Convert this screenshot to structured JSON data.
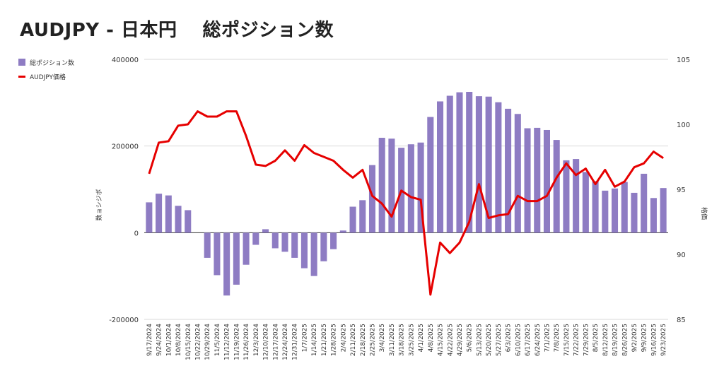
{
  "title": "AUDJPY - 日本円　 総ポジション数",
  "legend": {
    "bar_label": "総ポジション数",
    "line_label": "AUDJPY価格"
  },
  "colors": {
    "bar": "#8e7cc3",
    "line": "#e60000",
    "grid": "#d9d9d9"
  },
  "chart_data": {
    "type": "bar+line",
    "categories": [
      "9/17/2024",
      "9/24/2024",
      "10/1/2024",
      "10/8/2024",
      "10/15/2024",
      "10/22/2024",
      "10/29/2024",
      "11/5/2024",
      "11/12/2024",
      "11/19/2024",
      "11/26/2024",
      "12/3/2024",
      "12/10/2024",
      "12/17/2024",
      "12/24/2024",
      "12/31/2024",
      "1/7/2025",
      "1/14/2025",
      "1/21/2025",
      "1/28/2025",
      "2/4/2025",
      "2/11/2025",
      "2/18/2025",
      "2/25/2025",
      "3/4/2025",
      "3/11/2025",
      "3/18/2025",
      "3/25/2025",
      "4/1/2025",
      "4/8/2025",
      "4/15/2025",
      "4/22/2025",
      "4/29/2025",
      "5/6/2025",
      "5/13/2025",
      "5/20/2025",
      "5/27/2025",
      "6/3/2025",
      "6/10/2025",
      "6/17/2025",
      "6/24/2025",
      "7/1/2025",
      "7/8/2025",
      "7/15/2025",
      "7/22/2025",
      "7/29/2025",
      "8/5/2025",
      "8/12/2025",
      "8/19/2025",
      "8/26/2025",
      "9/2/2025",
      "9/9/2025",
      "9/16/2025",
      "9/23/2025"
    ],
    "x_tick_labels": [
      "9/17/2024",
      "9/24/2024",
      "10/1/2024",
      "10/8/2024",
      "10/15/2024",
      "10/22/2024",
      "10/29/2024",
      "11/5/2024",
      "11/12/2024",
      "11/19/2024",
      "11/26/2024",
      "12/3/2024",
      "12/10/2024",
      "12/17/2024",
      "12/24/2024",
      "12/31/2024",
      "1/7/2025",
      "1/14/2025",
      "1/21/2025",
      "1/28/2025",
      "2/4/2025",
      "2/11/2025",
      "2/18/2025",
      "2/25/2025",
      "3/4/2025",
      "3/11/2025",
      "3/18/2025",
      "3/25/2025",
      "4/1/2025",
      "4/8/2025",
      "4/15/2025",
      "4/22/2025",
      "4/29/2025",
      "5/6/2025",
      "5/13/2025",
      "5/20/2025",
      "5/27/2025",
      "6/3/2025",
      "6/10/2025",
      "6/17/2025",
      "6/24/2025",
      "7/1/2025",
      "7/8/2025",
      "7/15/2025",
      "7/22/2025",
      "7/29/2025",
      "8/5/2025",
      "8/12/2025",
      "8/19/2025",
      "8/26/2025",
      "9/2/2025",
      "9/9/2025",
      "9/16/2025",
      "9/23/2025"
    ],
    "series": [
      {
        "name": "総ポジション数",
        "type": "bar",
        "axis": "left",
        "values": [
          70000,
          90000,
          86000,
          62000,
          52000,
          0,
          -58000,
          -98000,
          -145000,
          -120000,
          -74000,
          -28000,
          8000,
          -36000,
          -44000,
          -58000,
          -82000,
          -100000,
          -66000,
          -38000,
          5000,
          60000,
          75000,
          156000,
          219000,
          217000,
          196000,
          204000,
          208000,
          267000,
          303000,
          316000,
          324000,
          325000,
          315000,
          314000,
          301000,
          286000,
          274000,
          241000,
          242000,
          237000,
          214000,
          167000,
          170000,
          140000,
          119000,
          97000,
          102000,
          117000,
          92000,
          136000,
          80000,
          103000
        ]
      },
      {
        "name": "AUDJPY価格",
        "type": "line",
        "axis": "right",
        "values": [
          96.2,
          98.6,
          98.7,
          99.9,
          100.0,
          101.0,
          100.6,
          100.6,
          101.0,
          101.0,
          99.1,
          96.9,
          96.8,
          97.2,
          98.0,
          97.2,
          98.4,
          97.8,
          97.5,
          97.2,
          96.5,
          95.9,
          96.5,
          94.5,
          93.9,
          92.9,
          94.9,
          94.4,
          94.2,
          86.9,
          90.9,
          90.1,
          90.9,
          92.5,
          95.4,
          92.8,
          93.0,
          93.1,
          94.5,
          94.1,
          94.1,
          94.5,
          95.9,
          97.0,
          96.1,
          96.6,
          95.4,
          96.5,
          95.2,
          95.6,
          96.7,
          97.0,
          97.9,
          97.4
        ]
      }
    ],
    "y_left": {
      "label": "数ョシジボ",
      "ylim": [
        -200000,
        400000
      ],
      "ticks": [
        400000,
        200000,
        0,
        -200000
      ],
      "tick_labels": [
        "400000",
        "200000",
        "0",
        "-200000"
      ]
    },
    "y_right": {
      "label": "格価",
      "ylim": [
        85,
        105
      ],
      "ticks": [
        105,
        100,
        95,
        90,
        85
      ],
      "tick_labels": [
        "105",
        "100",
        "95",
        "90",
        "85"
      ]
    },
    "grid": true,
    "legend_position": "top-left"
  }
}
